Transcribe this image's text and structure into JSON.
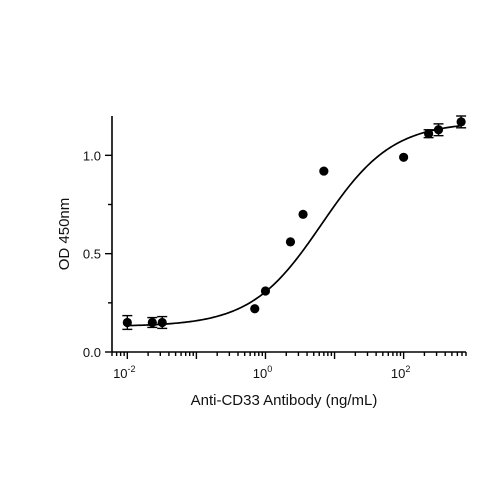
{
  "chart_data": {
    "type": "scatter",
    "x_scale": "log",
    "xlabel": "Anti-CD33 Antibody (ng/mL)",
    "ylabel": "OD 450nm",
    "xlim": [
      0.006,
      800
    ],
    "ylim": [
      0,
      1.2
    ],
    "x_tick_labels": [
      {
        "value": 0.01,
        "base": "10",
        "exp": "-2"
      },
      {
        "value": 1,
        "base": "10",
        "exp": "0"
      },
      {
        "value": 100,
        "base": "10",
        "exp": "2"
      }
    ],
    "y_tick_labels": [
      {
        "value": 0.0,
        "label": "0.0"
      },
      {
        "value": 0.5,
        "label": "0.5"
      },
      {
        "value": 1.0,
        "label": "1.0"
      }
    ],
    "points": [
      {
        "x": 0.01,
        "y": 0.15,
        "err": 0.035
      },
      {
        "x": 0.023,
        "y": 0.15,
        "err": 0.025
      },
      {
        "x": 0.032,
        "y": 0.15,
        "err": 0.03
      },
      {
        "x": 0.7,
        "y": 0.22,
        "err": 0
      },
      {
        "x": 1.0,
        "y": 0.31,
        "err": 0
      },
      {
        "x": 2.3,
        "y": 0.56,
        "err": 0
      },
      {
        "x": 3.5,
        "y": 0.7,
        "err": 0
      },
      {
        "x": 7.0,
        "y": 0.92,
        "err": 0
      },
      {
        "x": 100,
        "y": 0.99,
        "err": 0
      },
      {
        "x": 230,
        "y": 1.11,
        "err": 0.02
      },
      {
        "x": 320,
        "y": 1.13,
        "err": 0.03
      },
      {
        "x": 680,
        "y": 1.17,
        "err": 0.03
      }
    ],
    "fit": {
      "bottom": 0.13,
      "top": 1.17,
      "ec50": 6.5,
      "hill": 0.85
    },
    "grid": false,
    "legend": false
  }
}
